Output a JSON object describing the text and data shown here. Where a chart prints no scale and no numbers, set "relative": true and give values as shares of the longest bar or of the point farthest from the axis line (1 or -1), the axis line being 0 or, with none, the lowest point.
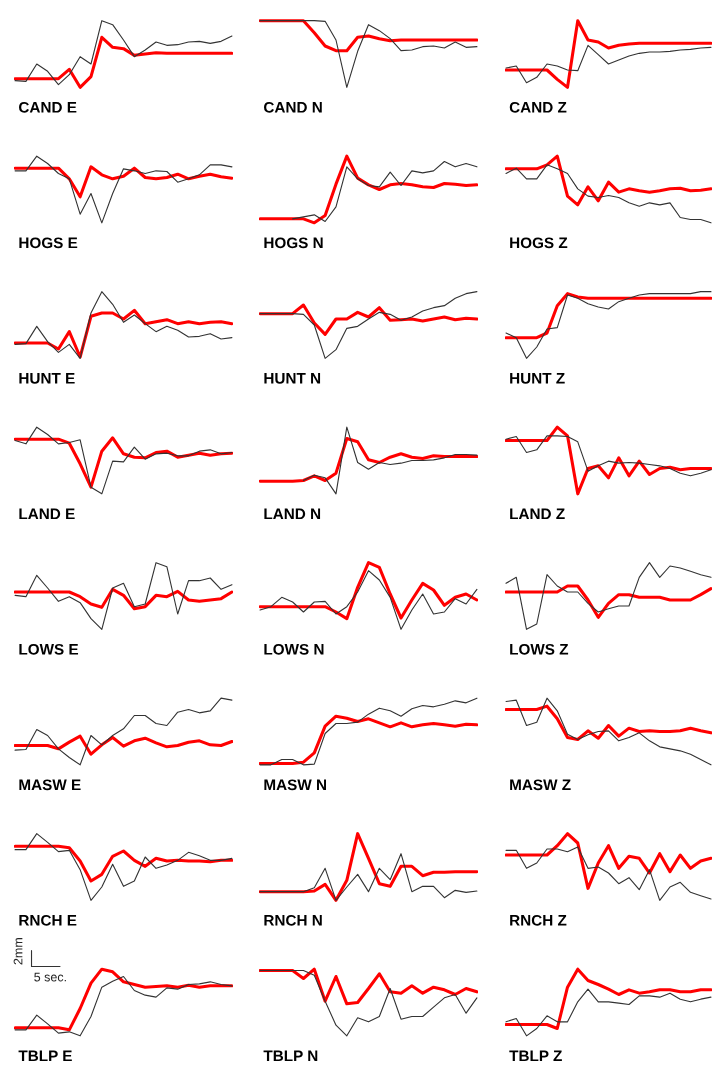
{
  "chart_data": [
    {
      "type": "line",
      "title": "CAND E",
      "relative": true,
      "categories": [
        null,
        null,
        null,
        null,
        null,
        null,
        null,
        null,
        null,
        null,
        null,
        null,
        null,
        null,
        null,
        null,
        null,
        null,
        null,
        null,
        null
      ],
      "series": [
        {
          "color": "#333333",
          "values": [
            0.1,
            0.09,
            0.35,
            0.24,
            0.04,
            0.19,
            0.46,
            0.35,
            1.0,
            0.94,
            0.71,
            0.46,
            0.56,
            0.68,
            0.63,
            0.64,
            0.68,
            0.69,
            0.66,
            0.69,
            0.77
          ]
        },
        {
          "color": "#ff0000",
          "values": [
            0.13,
            0.13,
            0.13,
            0.13,
            0.13,
            0.27,
            0,
            0.16,
            0.75,
            0.6,
            0.58,
            0.48,
            0.5,
            0.52,
            0.51,
            0.51,
            0.51,
            0.51,
            0.51,
            0.51,
            0.51
          ]
        }
      ]
    },
    {
      "type": "line",
      "title": "CAND N",
      "relative": true,
      "categories": [
        null,
        null,
        null,
        null,
        null,
        null,
        null,
        null,
        null,
        null,
        null,
        null,
        null,
        null,
        null,
        null,
        null,
        null,
        null,
        null,
        null
      ],
      "series": [
        {
          "color": "#333333",
          "values": [
            1,
            1,
            1,
            1,
            1,
            1,
            0.99,
            0.71,
            0,
            0.54,
            0.94,
            0.85,
            0.73,
            0.55,
            0.56,
            0.61,
            0.62,
            0.59,
            0.68,
            0.6,
            0.61
          ]
        },
        {
          "color": "#ff0000",
          "values": [
            1,
            1,
            1,
            1,
            1,
            0.82,
            0.62,
            0.55,
            0.55,
            0.75,
            0.77,
            0.73,
            0.7,
            0.71,
            0.71,
            0.71,
            0.71,
            0.71,
            0.71,
            0.71,
            0.71
          ]
        }
      ]
    },
    {
      "type": "line",
      "title": "CAND Z",
      "relative": true,
      "categories": [
        null,
        null,
        null,
        null,
        null,
        null,
        null,
        null,
        null,
        null,
        null,
        null,
        null,
        null,
        null,
        null,
        null,
        null,
        null,
        null,
        null
      ],
      "series": [
        {
          "color": "#333333",
          "values": [
            0.29,
            0.32,
            0.07,
            0.15,
            0.35,
            0.32,
            0.26,
            0.25,
            0.63,
            0.49,
            0.35,
            0.41,
            0.47,
            0.51,
            0.53,
            0.53,
            0.54,
            0.56,
            0.57,
            0.59,
            0.6
          ]
        },
        {
          "color": "#ff0000",
          "values": [
            0.26,
            0.26,
            0.26,
            0.26,
            0.26,
            0.12,
            0,
            1,
            0.71,
            0.68,
            0.59,
            0.63,
            0.65,
            0.66,
            0.66,
            0.66,
            0.66,
            0.66,
            0.66,
            0.66,
            0.66
          ]
        }
      ]
    },
    {
      "type": "line",
      "title": "HOGS E",
      "relative": true,
      "categories": [
        null,
        null,
        null,
        null,
        null,
        null,
        null,
        null,
        null,
        null,
        null,
        null,
        null,
        null,
        null,
        null,
        null,
        null,
        null,
        null,
        null
      ],
      "series": [
        {
          "color": "#333333",
          "values": [
            0.78,
            0.78,
            1,
            0.89,
            0.74,
            0.66,
            0.13,
            0.44,
            0,
            0.44,
            0.81,
            0.78,
            0.74,
            0.78,
            0.77,
            0.61,
            0.66,
            0.72,
            0.87,
            0.87,
            0.84
          ]
        },
        {
          "color": "#ff0000",
          "values": [
            0.82,
            0.82,
            0.82,
            0.82,
            0.82,
            0.66,
            0.39,
            0.84,
            0.72,
            0.66,
            0.7,
            0.82,
            0.68,
            0.66,
            0.68,
            0.73,
            0.66,
            0.7,
            0.73,
            0.69,
            0.67
          ]
        }
      ]
    },
    {
      "type": "line",
      "title": "HOGS N",
      "relative": true,
      "categories": [
        null,
        null,
        null,
        null,
        null,
        null,
        null,
        null,
        null,
        null,
        null,
        null,
        null,
        null,
        null,
        null,
        null,
        null,
        null,
        null,
        null
      ],
      "series": [
        {
          "color": "#333333",
          "values": [
            null,
            null,
            null,
            0.06,
            0.09,
            0.12,
            0.02,
            0.24,
            0.84,
            0.66,
            0.56,
            0.54,
            0.76,
            0.56,
            0.78,
            0.75,
            0.78,
            0.92,
            0.84,
            0.89,
            0.84
          ]
        },
        {
          "color": "#ff0000",
          "values": [
            0.06,
            0.06,
            0.06,
            0.06,
            0.06,
            0,
            0.11,
            0.58,
            1,
            0.67,
            0.57,
            0.5,
            0.57,
            0.59,
            0.57,
            0.54,
            0.53,
            0.59,
            0.58,
            0.56,
            0.57
          ]
        }
      ]
    },
    {
      "type": "line",
      "title": "HOGS Z",
      "relative": true,
      "categories": [
        null,
        null,
        null,
        null,
        null,
        null,
        null,
        null,
        null,
        null,
        null,
        null,
        null,
        null,
        null,
        null,
        null,
        null,
        null,
        null,
        null
      ],
      "series": [
        {
          "color": "#333333",
          "values": [
            0.74,
            0.82,
            0.66,
            0.66,
            0.87,
            0.81,
            0.74,
            0.51,
            0.4,
            0.38,
            0.41,
            0.38,
            0.3,
            0.25,
            0.3,
            0.27,
            0.3,
            0.08,
            0.05,
            0.05,
            0
          ]
        },
        {
          "color": "#ff0000",
          "values": [
            0.81,
            0.81,
            0.81,
            0.81,
            0.87,
            1,
            0.4,
            0.27,
            0.54,
            0.33,
            0.61,
            0.46,
            0.51,
            0.48,
            0.46,
            0.48,
            0.51,
            0.52,
            0.48,
            0.49,
            0.51
          ]
        }
      ]
    },
    {
      "type": "line",
      "title": "HUNT E",
      "relative": true,
      "categories": [
        null,
        null,
        null,
        null,
        null,
        null,
        null,
        null,
        null,
        null,
        null,
        null,
        null,
        null,
        null,
        null,
        null,
        null,
        null,
        null,
        null
      ],
      "series": [
        {
          "color": "#333333",
          "values": [
            0.21,
            0.22,
            0.48,
            0.25,
            0.09,
            0.21,
            0,
            0.68,
            1,
            0.81,
            0.54,
            0.65,
            0.52,
            0.4,
            0.48,
            0.42,
            0.32,
            0.33,
            0.37,
            0.29,
            0.31
          ]
        },
        {
          "color": "#ff0000",
          "values": [
            0.23,
            0.23,
            0.23,
            0.23,
            0.14,
            0.4,
            0.02,
            0.63,
            0.68,
            0.68,
            0.59,
            0.72,
            0.52,
            0.55,
            0.58,
            0.52,
            0.55,
            0.52,
            0.54,
            0.55,
            0.52
          ]
        }
      ]
    },
    {
      "type": "line",
      "title": "HUNT N",
      "relative": true,
      "categories": [
        null,
        null,
        null,
        null,
        null,
        null,
        null,
        null,
        null,
        null,
        null,
        null,
        null,
        null,
        null,
        null,
        null,
        null,
        null,
        null,
        null
      ],
      "series": [
        {
          "color": "#333333",
          "values": [
            0.67,
            0.67,
            0.67,
            0.67,
            0.66,
            0.5,
            0,
            0.13,
            0.45,
            0.48,
            0.59,
            0.69,
            0.66,
            0.57,
            0.62,
            0.71,
            0.76,
            0.79,
            0.9,
            0.97,
            1
          ]
        },
        {
          "color": "#ff0000",
          "values": [
            0.67,
            0.67,
            0.67,
            0.67,
            0.8,
            0.53,
            0.36,
            0.59,
            0.59,
            0.69,
            0.62,
            0.76,
            0.57,
            0.58,
            0.59,
            0.56,
            0.59,
            0.62,
            0.58,
            0.6,
            0.59
          ]
        }
      ]
    },
    {
      "type": "line",
      "title": "HUNT Z",
      "relative": true,
      "categories": [
        null,
        null,
        null,
        null,
        null,
        null,
        null,
        null,
        null,
        null,
        null,
        null,
        null,
        null,
        null,
        null,
        null,
        null,
        null,
        null,
        null
      ],
      "series": [
        {
          "color": "#333333",
          "values": [
            0.38,
            0.31,
            0,
            0.17,
            0.44,
            0.46,
            0.95,
            0.9,
            0.82,
            0.77,
            0.74,
            0.85,
            0.9,
            0.95,
            0.97,
            0.97,
            0.97,
            0.97,
            0.97,
            1,
            1
          ]
        },
        {
          "color": "#ff0000",
          "values": [
            0.31,
            0.31,
            0.31,
            0.31,
            0.38,
            0.79,
            0.97,
            0.92,
            0.9,
            0.9,
            0.9,
            0.9,
            0.9,
            0.9,
            0.9,
            0.9,
            0.9,
            0.9,
            0.9,
            0.9,
            0.9
          ]
        }
      ]
    },
    {
      "type": "line",
      "title": "LAND E",
      "relative": true,
      "categories": [
        null,
        null,
        null,
        null,
        null,
        null,
        null,
        null,
        null,
        null,
        null,
        null,
        null,
        null,
        null,
        null,
        null,
        null,
        null,
        null,
        null
      ],
      "series": [
        {
          "color": "#333333",
          "values": [
            0.8,
            0.75,
            1,
            0.89,
            0.75,
            0.77,
            0.81,
            0.1,
            0,
            0.49,
            0.48,
            0.7,
            0.52,
            0.6,
            0.61,
            0.57,
            0.57,
            0.64,
            0.66,
            0.6,
            0.62
          ]
        },
        {
          "color": "#ff0000",
          "values": [
            0.82,
            0.82,
            0.82,
            0.82,
            0.82,
            0.76,
            0.45,
            0.1,
            0.64,
            0.84,
            0.6,
            0.55,
            0.54,
            0.62,
            0.64,
            0.55,
            0.58,
            0.61,
            0.58,
            0.6,
            0.61
          ]
        }
      ]
    },
    {
      "type": "line",
      "title": "LAND N",
      "relative": true,
      "categories": [
        null,
        null,
        null,
        null,
        null,
        null,
        null,
        null,
        null,
        null,
        null,
        null,
        null,
        null,
        null,
        null,
        null,
        null,
        null,
        null,
        null
      ],
      "series": [
        {
          "color": "#333333",
          "values": [
            null,
            null,
            null,
            null,
            0.2,
            0.28,
            0.24,
            0,
            1,
            0.47,
            0.37,
            0.47,
            0.44,
            0.46,
            0.5,
            0.5,
            0.51,
            0.54,
            0.59,
            0.59,
            0.58
          ]
        },
        {
          "color": "#ff0000",
          "values": [
            0.19,
            0.19,
            0.19,
            0.19,
            0.2,
            0.27,
            0.2,
            0.31,
            0.83,
            0.78,
            0.51,
            0.47,
            0.55,
            0.6,
            0.55,
            0.53,
            0.57,
            0.56,
            0.56,
            0.56,
            0.56
          ]
        }
      ]
    },
    {
      "type": "line",
      "title": "LAND Z",
      "relative": true,
      "categories": [
        null,
        null,
        null,
        null,
        null,
        null,
        null,
        null,
        null,
        null,
        null,
        null,
        null,
        null,
        null,
        null,
        null,
        null,
        null,
        null,
        null
      ],
      "series": [
        {
          "color": "#333333",
          "values": [
            0.82,
            0.86,
            0.62,
            0.66,
            0.87,
            0.87,
            0.86,
            0.78,
            0.34,
            0.42,
            0.49,
            0.46,
            0.47,
            0.46,
            0.44,
            0.42,
            0.38,
            0.31,
            0.27,
            0.31,
            0.36
          ]
        },
        {
          "color": "#ff0000",
          "values": [
            0.8,
            0.8,
            0.8,
            0.8,
            0.8,
            1,
            0.87,
            0,
            0.38,
            0.42,
            0.24,
            0.54,
            0.27,
            0.49,
            0.29,
            0.38,
            0.4,
            0.36,
            0.38,
            0.38,
            0.38
          ]
        }
      ]
    },
    {
      "type": "line",
      "title": "LOWS E",
      "relative": true,
      "categories": [
        null,
        null,
        null,
        null,
        null,
        null,
        null,
        null,
        null,
        null,
        null,
        null,
        null,
        null,
        null,
        null,
        null,
        null,
        null,
        null,
        null
      ],
      "series": [
        {
          "color": "#333333",
          "values": [
            0.51,
            0.49,
            0.81,
            0.62,
            0.42,
            0.49,
            0.4,
            0.16,
            0,
            0.62,
            0.69,
            0.34,
            0.38,
            1,
            0.94,
            0.23,
            0.73,
            0.73,
            0.77,
            0.6,
            0.67
          ]
        },
        {
          "color": "#ff0000",
          "values": [
            0.56,
            0.56,
            0.56,
            0.56,
            0.56,
            0.56,
            0.49,
            0.38,
            0.33,
            0.6,
            0.51,
            0.31,
            0.34,
            0.51,
            0.49,
            0.57,
            0.44,
            0.42,
            0.44,
            0.46,
            0.56
          ]
        }
      ]
    },
    {
      "type": "line",
      "title": "LOWS N",
      "relative": true,
      "categories": [
        null,
        null,
        null,
        null,
        null,
        null,
        null,
        null,
        null,
        null,
        null,
        null,
        null,
        null,
        null,
        null,
        null,
        null,
        null,
        null,
        null
      ],
      "series": [
        {
          "color": "#333333",
          "values": [
            0.29,
            0.34,
            0.48,
            0.41,
            0.26,
            0.41,
            0.42,
            0.23,
            0.34,
            0.56,
            0.88,
            0.74,
            0.48,
            0,
            0.29,
            0.53,
            0.23,
            0.26,
            0.46,
            0.38,
            0.6
          ]
        },
        {
          "color": "#ff0000",
          "values": [
            0.34,
            0.34,
            0.34,
            0.34,
            0.34,
            0.34,
            0.34,
            0.26,
            0.16,
            0.63,
            1,
            0.93,
            0.53,
            0.17,
            0.44,
            0.69,
            0.59,
            0.36,
            0.48,
            0.53,
            0.44
          ]
        }
      ]
    },
    {
      "type": "line",
      "title": "LOWS Z",
      "relative": true,
      "categories": [
        null,
        null,
        null,
        null,
        null,
        null,
        null,
        null,
        null,
        null,
        null,
        null,
        null,
        null,
        null,
        null,
        null,
        null,
        null,
        null,
        null
      ],
      "series": [
        {
          "color": "#333333",
          "values": [
            0.69,
            0.78,
            0,
            0.08,
            0.82,
            0.65,
            0.56,
            0.56,
            0.39,
            0.26,
            0.31,
            0.35,
            0.35,
            0.78,
            1,
            0.78,
            0.95,
            0.92,
            0.87,
            0.82,
            0.78
          ]
        },
        {
          "color": "#ff0000",
          "values": [
            0.56,
            0.56,
            0.56,
            0.56,
            0.56,
            0.56,
            0.65,
            0.65,
            0.44,
            0.18,
            0.39,
            0.52,
            0.52,
            0.48,
            0.48,
            0.48,
            0.44,
            0.44,
            0.44,
            0.52,
            0.61
          ]
        }
      ]
    },
    {
      "type": "line",
      "title": "MASW E",
      "relative": true,
      "categories": [
        null,
        null,
        null,
        null,
        null,
        null,
        null,
        null,
        null,
        null,
        null,
        null,
        null,
        null,
        null,
        null,
        null,
        null,
        null,
        null,
        null
      ],
      "series": [
        {
          "color": "#333333",
          "values": [
            0.22,
            0.23,
            0.53,
            0.44,
            0.24,
            0.11,
            0,
            0.44,
            0.3,
            0.44,
            0.54,
            0.74,
            0.74,
            0.62,
            0.59,
            0.79,
            0.83,
            0.78,
            0.81,
            1,
            0.97
          ]
        },
        {
          "color": "#ff0000",
          "values": [
            0.29,
            0.29,
            0.29,
            0.29,
            0.24,
            0.34,
            0.43,
            0.16,
            0.3,
            0.41,
            0.28,
            0.36,
            0.4,
            0.33,
            0.27,
            0.29,
            0.34,
            0.36,
            0.3,
            0.29,
            0.35
          ]
        }
      ]
    },
    {
      "type": "line",
      "title": "MASW N",
      "relative": true,
      "categories": [
        null,
        null,
        null,
        null,
        null,
        null,
        null,
        null,
        null,
        null,
        null,
        null,
        null,
        null,
        null,
        null,
        null,
        null,
        null,
        null,
        null
      ],
      "series": [
        {
          "color": "#333333",
          "values": [
            0,
            0,
            0.08,
            0.08,
            0,
            0.01,
            0.47,
            0.62,
            0.62,
            0.64,
            0.76,
            0.85,
            0.81,
            0.73,
            0.84,
            0.89,
            0.87,
            0.91,
            0.96,
            0.93,
            1
          ]
        },
        {
          "color": "#ff0000",
          "values": [
            0.02,
            0.02,
            0.02,
            0.02,
            0.04,
            0.18,
            0.58,
            0.73,
            0.7,
            0.65,
            0.69,
            0.63,
            0.57,
            0.63,
            0.57,
            0.6,
            0.62,
            0.6,
            0.58,
            0.61,
            0.6
          ]
        }
      ]
    },
    {
      "type": "line",
      "title": "MASW Z",
      "relative": true,
      "categories": [
        null,
        null,
        null,
        null,
        null,
        null,
        null,
        null,
        null,
        null,
        null,
        null,
        null,
        null,
        null,
        null,
        null,
        null,
        null,
        null,
        null
      ],
      "series": [
        {
          "color": "#333333",
          "values": [
            0.95,
            0.97,
            0.59,
            0.64,
            1,
            0.81,
            0.46,
            0.38,
            0.45,
            0.5,
            0.51,
            0.36,
            0.41,
            0.48,
            0.36,
            0.27,
            0.24,
            0.21,
            0.16,
            0.08,
            0
          ]
        },
        {
          "color": "#ff0000",
          "values": [
            0.83,
            0.83,
            0.83,
            0.83,
            0.88,
            0.69,
            0.41,
            0.38,
            0.51,
            0.4,
            0.59,
            0.43,
            0.55,
            0.5,
            0.51,
            0.5,
            0.5,
            0.51,
            0.55,
            0.51,
            0.48
          ]
        }
      ]
    },
    {
      "type": "line",
      "title": "RNCH E",
      "relative": true,
      "categories": [
        null,
        null,
        null,
        null,
        null,
        null,
        null,
        null,
        null,
        null,
        null,
        null,
        null,
        null,
        null,
        null,
        null,
        null,
        null,
        null,
        null
      ],
      "series": [
        {
          "color": "#333333",
          "values": [
            0.76,
            0.76,
            1,
            0.87,
            0.73,
            0.75,
            0.46,
            0,
            0.2,
            0.54,
            0.21,
            0.29,
            0.65,
            0.48,
            0.53,
            0.6,
            0.72,
            0.67,
            0.6,
            0.6,
            0.63
          ]
        },
        {
          "color": "#ff0000",
          "values": [
            0.81,
            0.81,
            0.81,
            0.81,
            0.81,
            0.79,
            0.59,
            0.29,
            0.39,
            0.66,
            0.74,
            0.6,
            0.51,
            0.63,
            0.59,
            0.6,
            0.59,
            0.59,
            0.58,
            0.6,
            0.6
          ]
        }
      ]
    },
    {
      "type": "line",
      "title": "RNCH N",
      "relative": true,
      "categories": [
        null,
        null,
        null,
        null,
        null,
        null,
        null,
        null,
        null,
        null,
        null,
        null,
        null,
        null,
        null,
        null,
        null,
        null,
        null,
        null,
        null
      ],
      "series": [
        {
          "color": "#333333",
          "values": [
            0.13,
            0.13,
            0.13,
            0.13,
            0.13,
            0.19,
            0.48,
            0,
            0.2,
            0.39,
            0.13,
            0.48,
            0.31,
            0.7,
            0.13,
            0.21,
            0.21,
            0.04,
            0.15,
            0.12,
            0.14
          ]
        },
        {
          "color": "#ff0000",
          "values": [
            0.13,
            0.13,
            0.13,
            0.13,
            0.13,
            0.14,
            0.24,
            0,
            0.3,
            1,
            0.63,
            0.25,
            0.21,
            0.51,
            0.51,
            0.37,
            0.42,
            0.42,
            0.43,
            0.43,
            0.43
          ]
        }
      ]
    },
    {
      "type": "line",
      "title": "RNCH Z",
      "relative": true,
      "categories": [
        null,
        null,
        null,
        null,
        null,
        null,
        null,
        null,
        null,
        null,
        null,
        null,
        null,
        null,
        null,
        null,
        null,
        null,
        null,
        null,
        null
      ],
      "series": [
        {
          "color": "#333333",
          "values": [
            0.75,
            0.75,
            0.48,
            0.56,
            0.77,
            0.77,
            0.73,
            0.8,
            0.48,
            0.5,
            0.41,
            0.25,
            0.34,
            0.16,
            0.46,
            0,
            0.2,
            0.27,
            0.12,
            0.07,
            0.02
          ]
        },
        {
          "color": "#ff0000",
          "values": [
            0.68,
            0.68,
            0.68,
            0.68,
            0.68,
            0.82,
            1,
            0.86,
            0.18,
            0.56,
            0.82,
            0.48,
            0.66,
            0.63,
            0.41,
            0.7,
            0.43,
            0.68,
            0.48,
            0.59,
            0.63
          ]
        }
      ]
    },
    {
      "type": "line",
      "title": "TBLP E",
      "relative": true,
      "annotations": [
        "2mm",
        "5 sec."
      ],
      "categories": [
        null,
        null,
        null,
        null,
        null,
        null,
        null,
        null,
        null,
        null,
        null,
        null,
        null,
        null,
        null,
        null,
        null,
        null,
        null,
        null,
        null
      ],
      "series": [
        {
          "color": "#333333",
          "values": [
            0.09,
            0.09,
            0.31,
            0.18,
            0.04,
            0.06,
            0,
            0.29,
            0.73,
            0.82,
            0.89,
            0.68,
            0.61,
            0.58,
            0.72,
            0.7,
            0.77,
            0.78,
            0.81,
            0.77,
            0.75
          ]
        },
        {
          "color": "#ff0000",
          "values": [
            0.12,
            0.12,
            0.12,
            0.12,
            0.12,
            0.09,
            0.41,
            0.79,
            1,
            0.96,
            0.81,
            0.77,
            0.73,
            0.74,
            0.75,
            0.73,
            0.76,
            0.73,
            0.75,
            0.75,
            0.75
          ]
        }
      ]
    },
    {
      "type": "line",
      "title": "TBLP N",
      "relative": true,
      "categories": [
        null,
        null,
        null,
        null,
        null,
        null,
        null,
        null,
        null,
        null,
        null,
        null,
        null,
        null,
        null,
        null,
        null,
        null,
        null,
        null,
        null
      ],
      "series": [
        {
          "color": "#333333",
          "values": [
            0.98,
            0.98,
            0.98,
            0.98,
            0.98,
            0.91,
            0.52,
            0.16,
            0,
            0.27,
            0.21,
            0.29,
            0.71,
            0.25,
            0.29,
            0.29,
            0.43,
            0.57,
            0.62,
            0.34,
            0.57
          ]
        },
        {
          "color": "#ff0000",
          "values": [
            0.98,
            0.98,
            0.98,
            0.98,
            0.86,
            1,
            0.52,
            0.89,
            0.48,
            0.5,
            0.71,
            0.93,
            0.66,
            0.64,
            0.75,
            0.64,
            0.73,
            0.69,
            0.62,
            0.71,
            0.66
          ]
        }
      ]
    },
    {
      "type": "line",
      "title": "TBLP Z",
      "relative": true,
      "categories": [
        null,
        null,
        null,
        null,
        null,
        null,
        null,
        null,
        null,
        null,
        null,
        null,
        null,
        null,
        null,
        null,
        null,
        null,
        null,
        null,
        null
      ],
      "series": [
        {
          "color": "#333333",
          "values": [
            0.21,
            0.26,
            0,
            0.11,
            0.3,
            0.21,
            0.21,
            0.51,
            0.7,
            0.51,
            0.51,
            0.49,
            0.47,
            0.6,
            0.6,
            0.58,
            0.64,
            0.55,
            0.51,
            0.55,
            0.58
          ]
        },
        {
          "color": "#ff0000",
          "values": [
            0.17,
            0.17,
            0.17,
            0.17,
            0.17,
            0.11,
            0.73,
            1,
            0.83,
            0.77,
            0.7,
            0.62,
            0.69,
            0.64,
            0.66,
            0.69,
            0.69,
            0.66,
            0.66,
            0.69,
            0.69
          ]
        }
      ]
    }
  ]
}
